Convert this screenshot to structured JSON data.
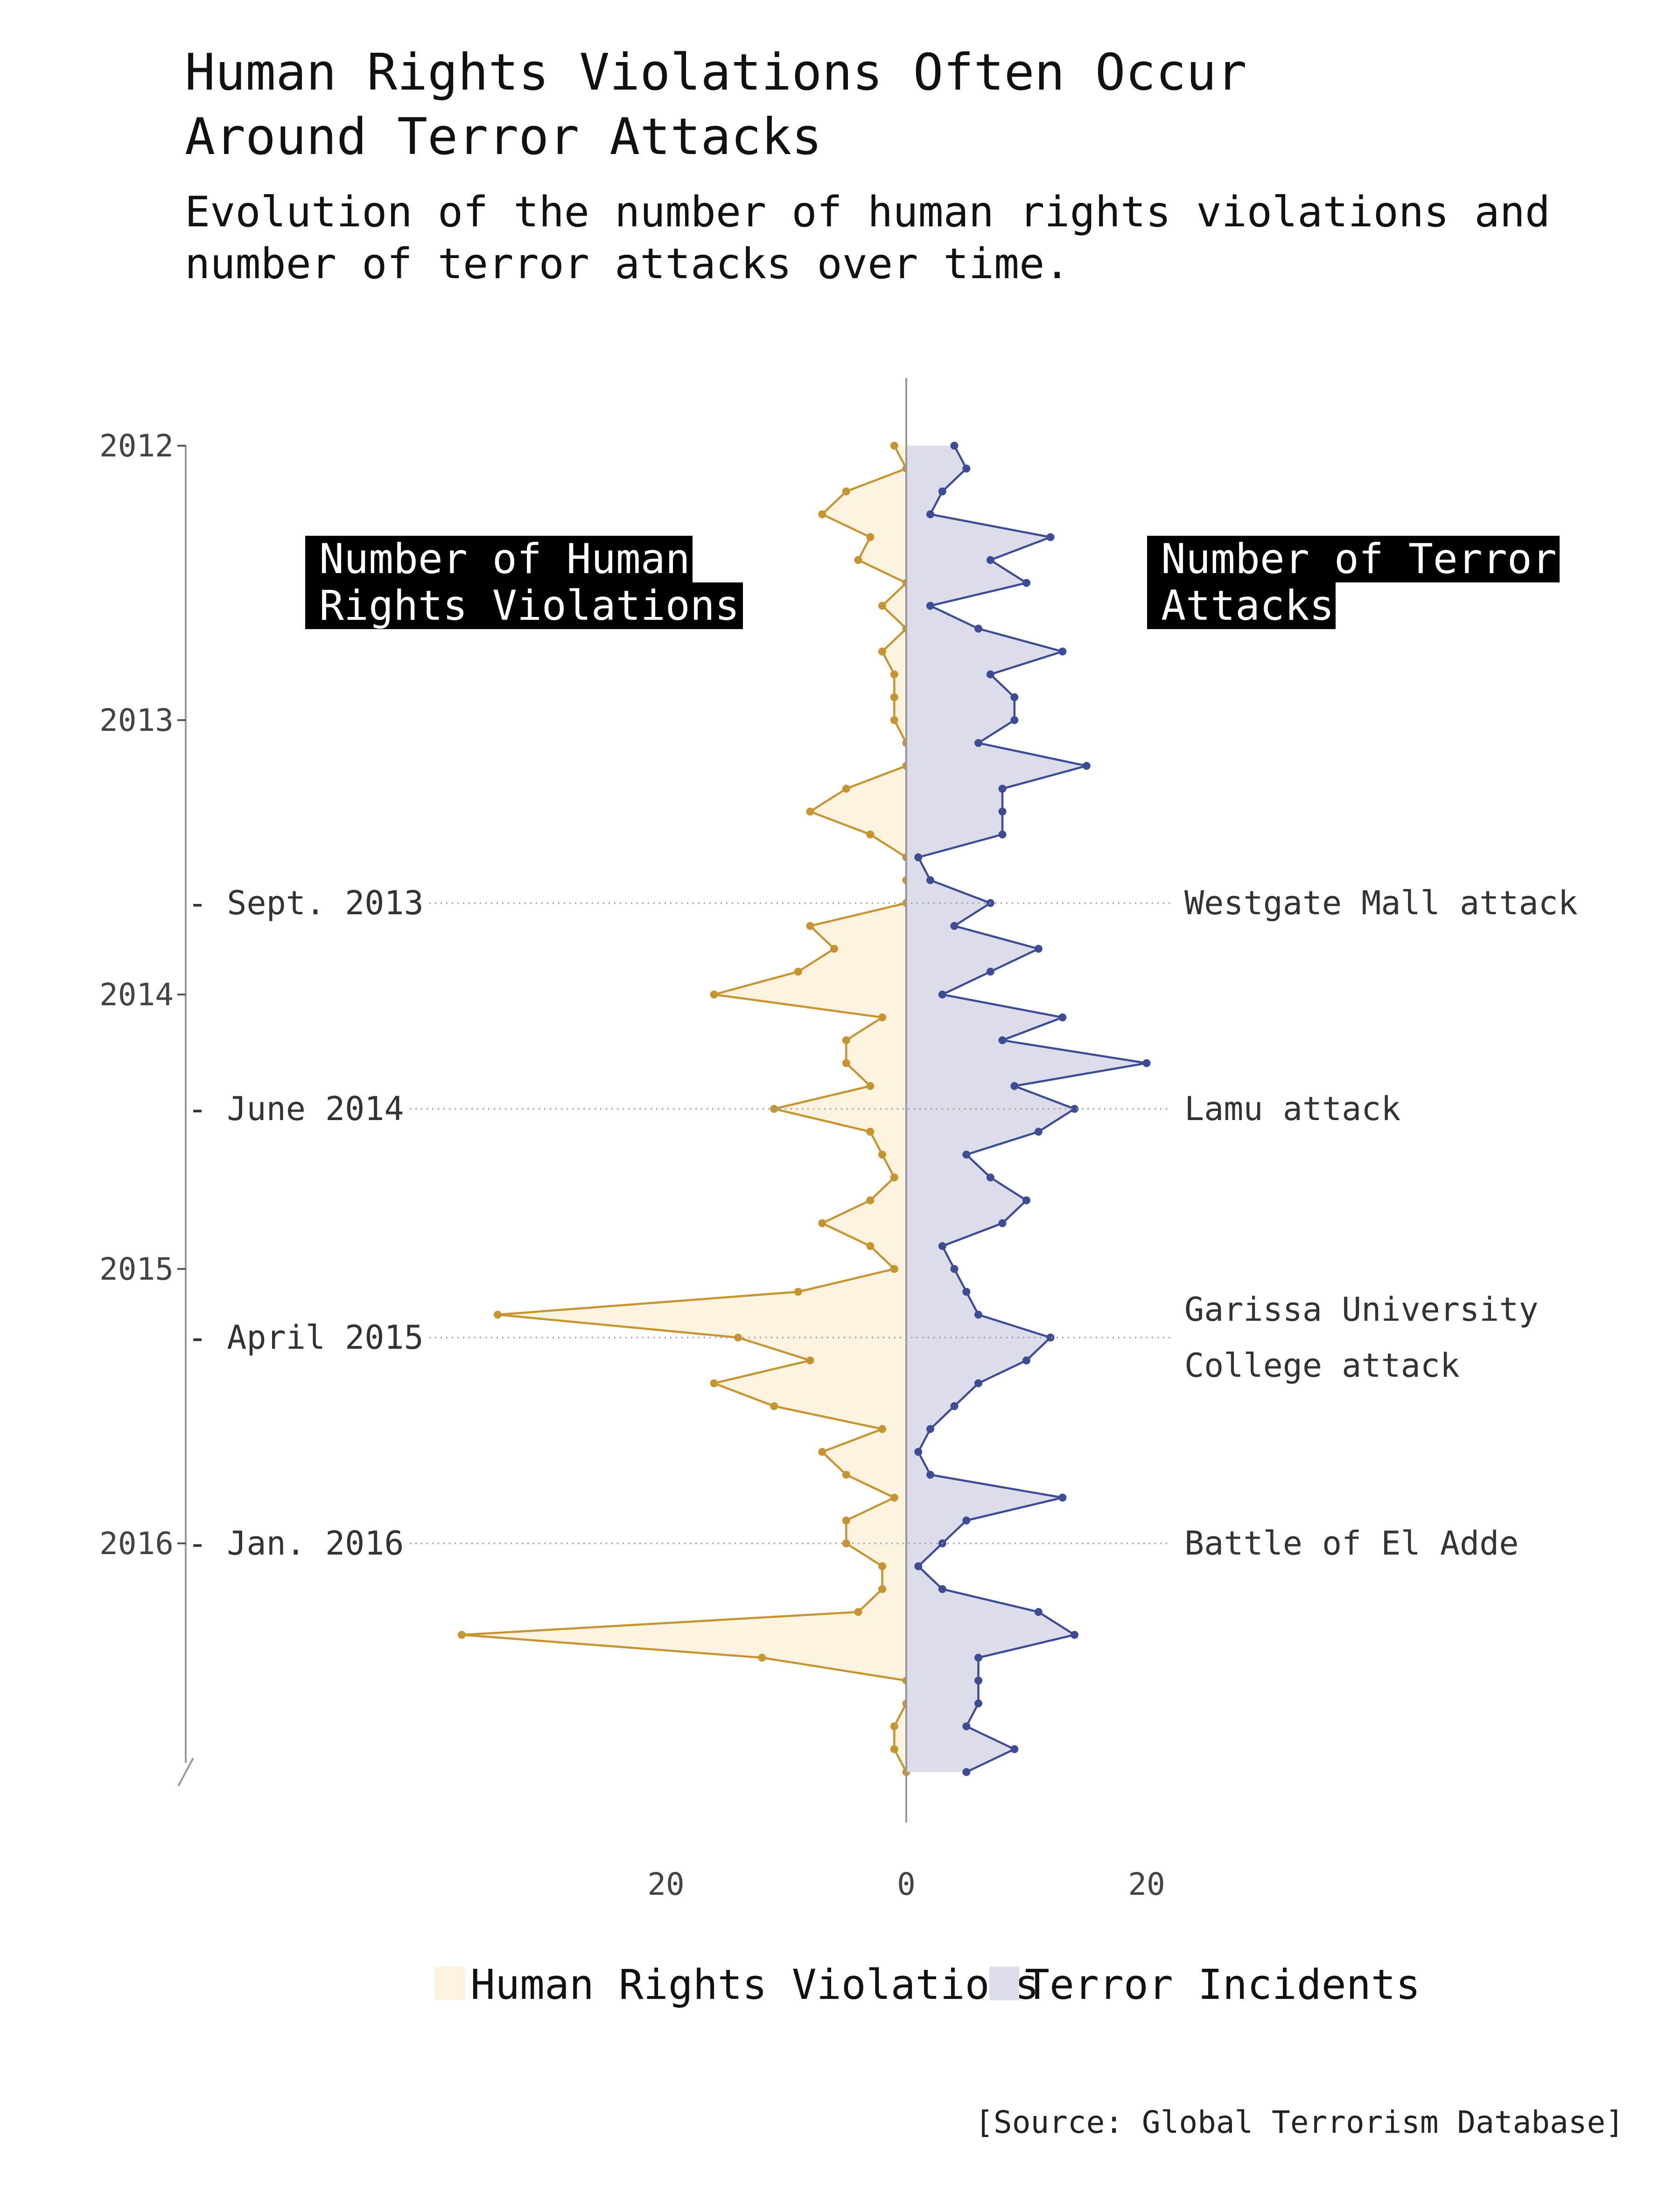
{
  "title_lines": [
    "Human Rights Violations Often Occur",
    "Around Terror Attacks"
  ],
  "subtitle_lines": [
    "Evolution of the number of human rights violations and",
    "number of terror attacks over time."
  ],
  "source": "[Source: Global Terrorism Database]",
  "left_box_lines": [
    "Number of Human",
    "Rights Violations"
  ],
  "right_box_lines": [
    "Number of Terror",
    "Attacks"
  ],
  "colors": {
    "violations_line": "#C7952F",
    "violations_fill": "#FBF2E0",
    "terror_line": "#3D4C94",
    "terror_fill": "#DCDDEA",
    "axis": "#999999",
    "label_box": "#000000"
  },
  "chart_data": {
    "type": "area",
    "orientation": "vertical time axis, mirrored values around zero",
    "time_axis": {
      "ticks": [
        {
          "label": "2012",
          "month": 0
        },
        {
          "label": "2013",
          "month": 12
        },
        {
          "label": "2014",
          "month": 24
        },
        {
          "label": "2015",
          "month": 36
        },
        {
          "label": "2016",
          "month": 48
        }
      ]
    },
    "value_axis": {
      "range": [
        -38,
        25
      ],
      "ticks": [
        {
          "label": "20",
          "value": -20
        },
        {
          "label": "0",
          "value": 0
        },
        {
          "label": "20",
          "value": 20
        }
      ]
    },
    "series": [
      {
        "name": "Human Rights Violations",
        "side": "left",
        "values": [
          1,
          0,
          5,
          7,
          3,
          4,
          0,
          2,
          0,
          2,
          1,
          1,
          1,
          0,
          0,
          5,
          8,
          3,
          0,
          0,
          0,
          8,
          6,
          9,
          16,
          2,
          5,
          5,
          3,
          11,
          3,
          2,
          1,
          3,
          7,
          3,
          1,
          9,
          34,
          14,
          8,
          16,
          11,
          2,
          7,
          5,
          1,
          5,
          5,
          2,
          2,
          4,
          37,
          12,
          0,
          0,
          1,
          1,
          0
        ]
      },
      {
        "name": "Terror Incidents",
        "side": "right",
        "values": [
          4,
          5,
          3,
          2,
          12,
          7,
          10,
          2,
          6,
          13,
          7,
          9,
          9,
          6,
          15,
          8,
          8,
          8,
          1,
          2,
          7,
          4,
          11,
          7,
          3,
          13,
          8,
          20,
          9,
          14,
          11,
          5,
          7,
          10,
          8,
          3,
          4,
          5,
          6,
          12,
          10,
          6,
          4,
          2,
          1,
          2,
          13,
          5,
          3,
          1,
          3,
          11,
          14,
          6,
          6,
          6,
          5,
          9,
          5
        ]
      }
    ],
    "events": [
      {
        "date_label": "Sept. 2013",
        "month": 20,
        "text_lines": [
          "Westgate Mall attack"
        ]
      },
      {
        "date_label": "June 2014",
        "month": 29,
        "text_lines": [
          "Lamu attack"
        ]
      },
      {
        "date_label": "April 2015",
        "month": 39,
        "text_lines": [
          "Garissa University",
          "College attack"
        ]
      },
      {
        "date_label": "Jan. 2016",
        "month": 48,
        "text_lines": [
          "Battle of El Adde"
        ]
      }
    ],
    "legend": {
      "placement": "bottom",
      "entries": [
        "Human Rights Violations",
        "Terror Incidents"
      ]
    },
    "grid": false
  }
}
